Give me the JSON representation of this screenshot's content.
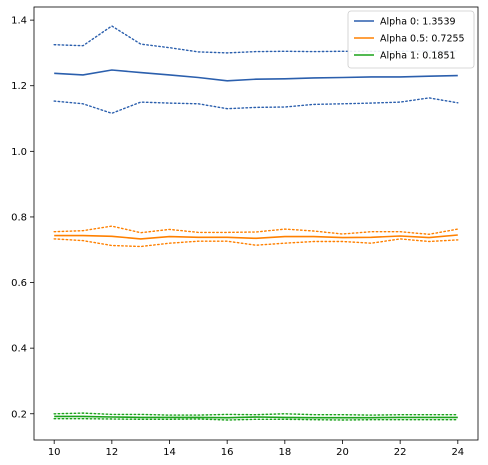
{
  "chart_data": {
    "type": "line",
    "title": "",
    "xlabel": "",
    "ylabel": "",
    "xlim": [
      9.3,
      24.7
    ],
    "ylim": [
      0.12,
      1.44
    ],
    "xticks": [
      10,
      12,
      14,
      16,
      18,
      20,
      22,
      24
    ],
    "yticks": [
      0.2,
      0.4,
      0.6,
      0.8,
      1.0,
      1.2,
      1.4
    ],
    "ytick_labels": [
      "0.2",
      "0.4",
      "0.6",
      "0.8",
      "1.0",
      "1.2",
      "1.4"
    ],
    "grid": false,
    "legend_position": "top-right",
    "x": [
      10,
      11,
      12,
      13,
      14,
      15,
      16,
      17,
      18,
      19,
      20,
      21,
      22,
      23,
      24
    ],
    "series": [
      {
        "name": "Alpha 0: 1.3539",
        "color": "#2b5fad",
        "mean": [
          1.238,
          1.233,
          1.248,
          1.24,
          1.233,
          1.225,
          1.215,
          1.22,
          1.221,
          1.224,
          1.225,
          1.227,
          1.227,
          1.229,
          1.231
        ],
        "upper": [
          1.325,
          1.322,
          1.382,
          1.327,
          1.316,
          1.303,
          1.3,
          1.304,
          1.305,
          1.304,
          1.305,
          1.305,
          1.305,
          1.306,
          1.306
        ],
        "lower": [
          1.153,
          1.145,
          1.116,
          1.15,
          1.147,
          1.145,
          1.13,
          1.134,
          1.135,
          1.143,
          1.145,
          1.147,
          1.15,
          1.163,
          1.148
        ]
      },
      {
        "name": "Alpha 0.5: 0.7255",
        "color": "#ff8000",
        "mean": [
          0.743,
          0.743,
          0.741,
          0.733,
          0.74,
          0.738,
          0.738,
          0.735,
          0.74,
          0.74,
          0.737,
          0.738,
          0.742,
          0.737,
          0.745
        ],
        "upper": [
          0.755,
          0.758,
          0.772,
          0.752,
          0.762,
          0.753,
          0.753,
          0.754,
          0.763,
          0.757,
          0.748,
          0.755,
          0.755,
          0.747,
          0.763
        ],
        "lower": [
          0.733,
          0.728,
          0.713,
          0.71,
          0.72,
          0.726,
          0.726,
          0.714,
          0.72,
          0.725,
          0.725,
          0.72,
          0.733,
          0.725,
          0.73
        ]
      },
      {
        "name": "Alpha 1: 0.1851",
        "color": "#1aa31a",
        "mean": [
          0.192,
          0.192,
          0.19,
          0.189,
          0.189,
          0.189,
          0.188,
          0.19,
          0.189,
          0.188,
          0.188,
          0.188,
          0.189,
          0.189,
          0.189
        ],
        "upper": [
          0.2,
          0.202,
          0.198,
          0.198,
          0.196,
          0.196,
          0.198,
          0.197,
          0.2,
          0.197,
          0.197,
          0.196,
          0.197,
          0.197,
          0.197
        ],
        "lower": [
          0.185,
          0.185,
          0.184,
          0.183,
          0.183,
          0.184,
          0.181,
          0.183,
          0.183,
          0.182,
          0.181,
          0.182,
          0.182,
          0.182,
          0.182
        ]
      }
    ]
  }
}
